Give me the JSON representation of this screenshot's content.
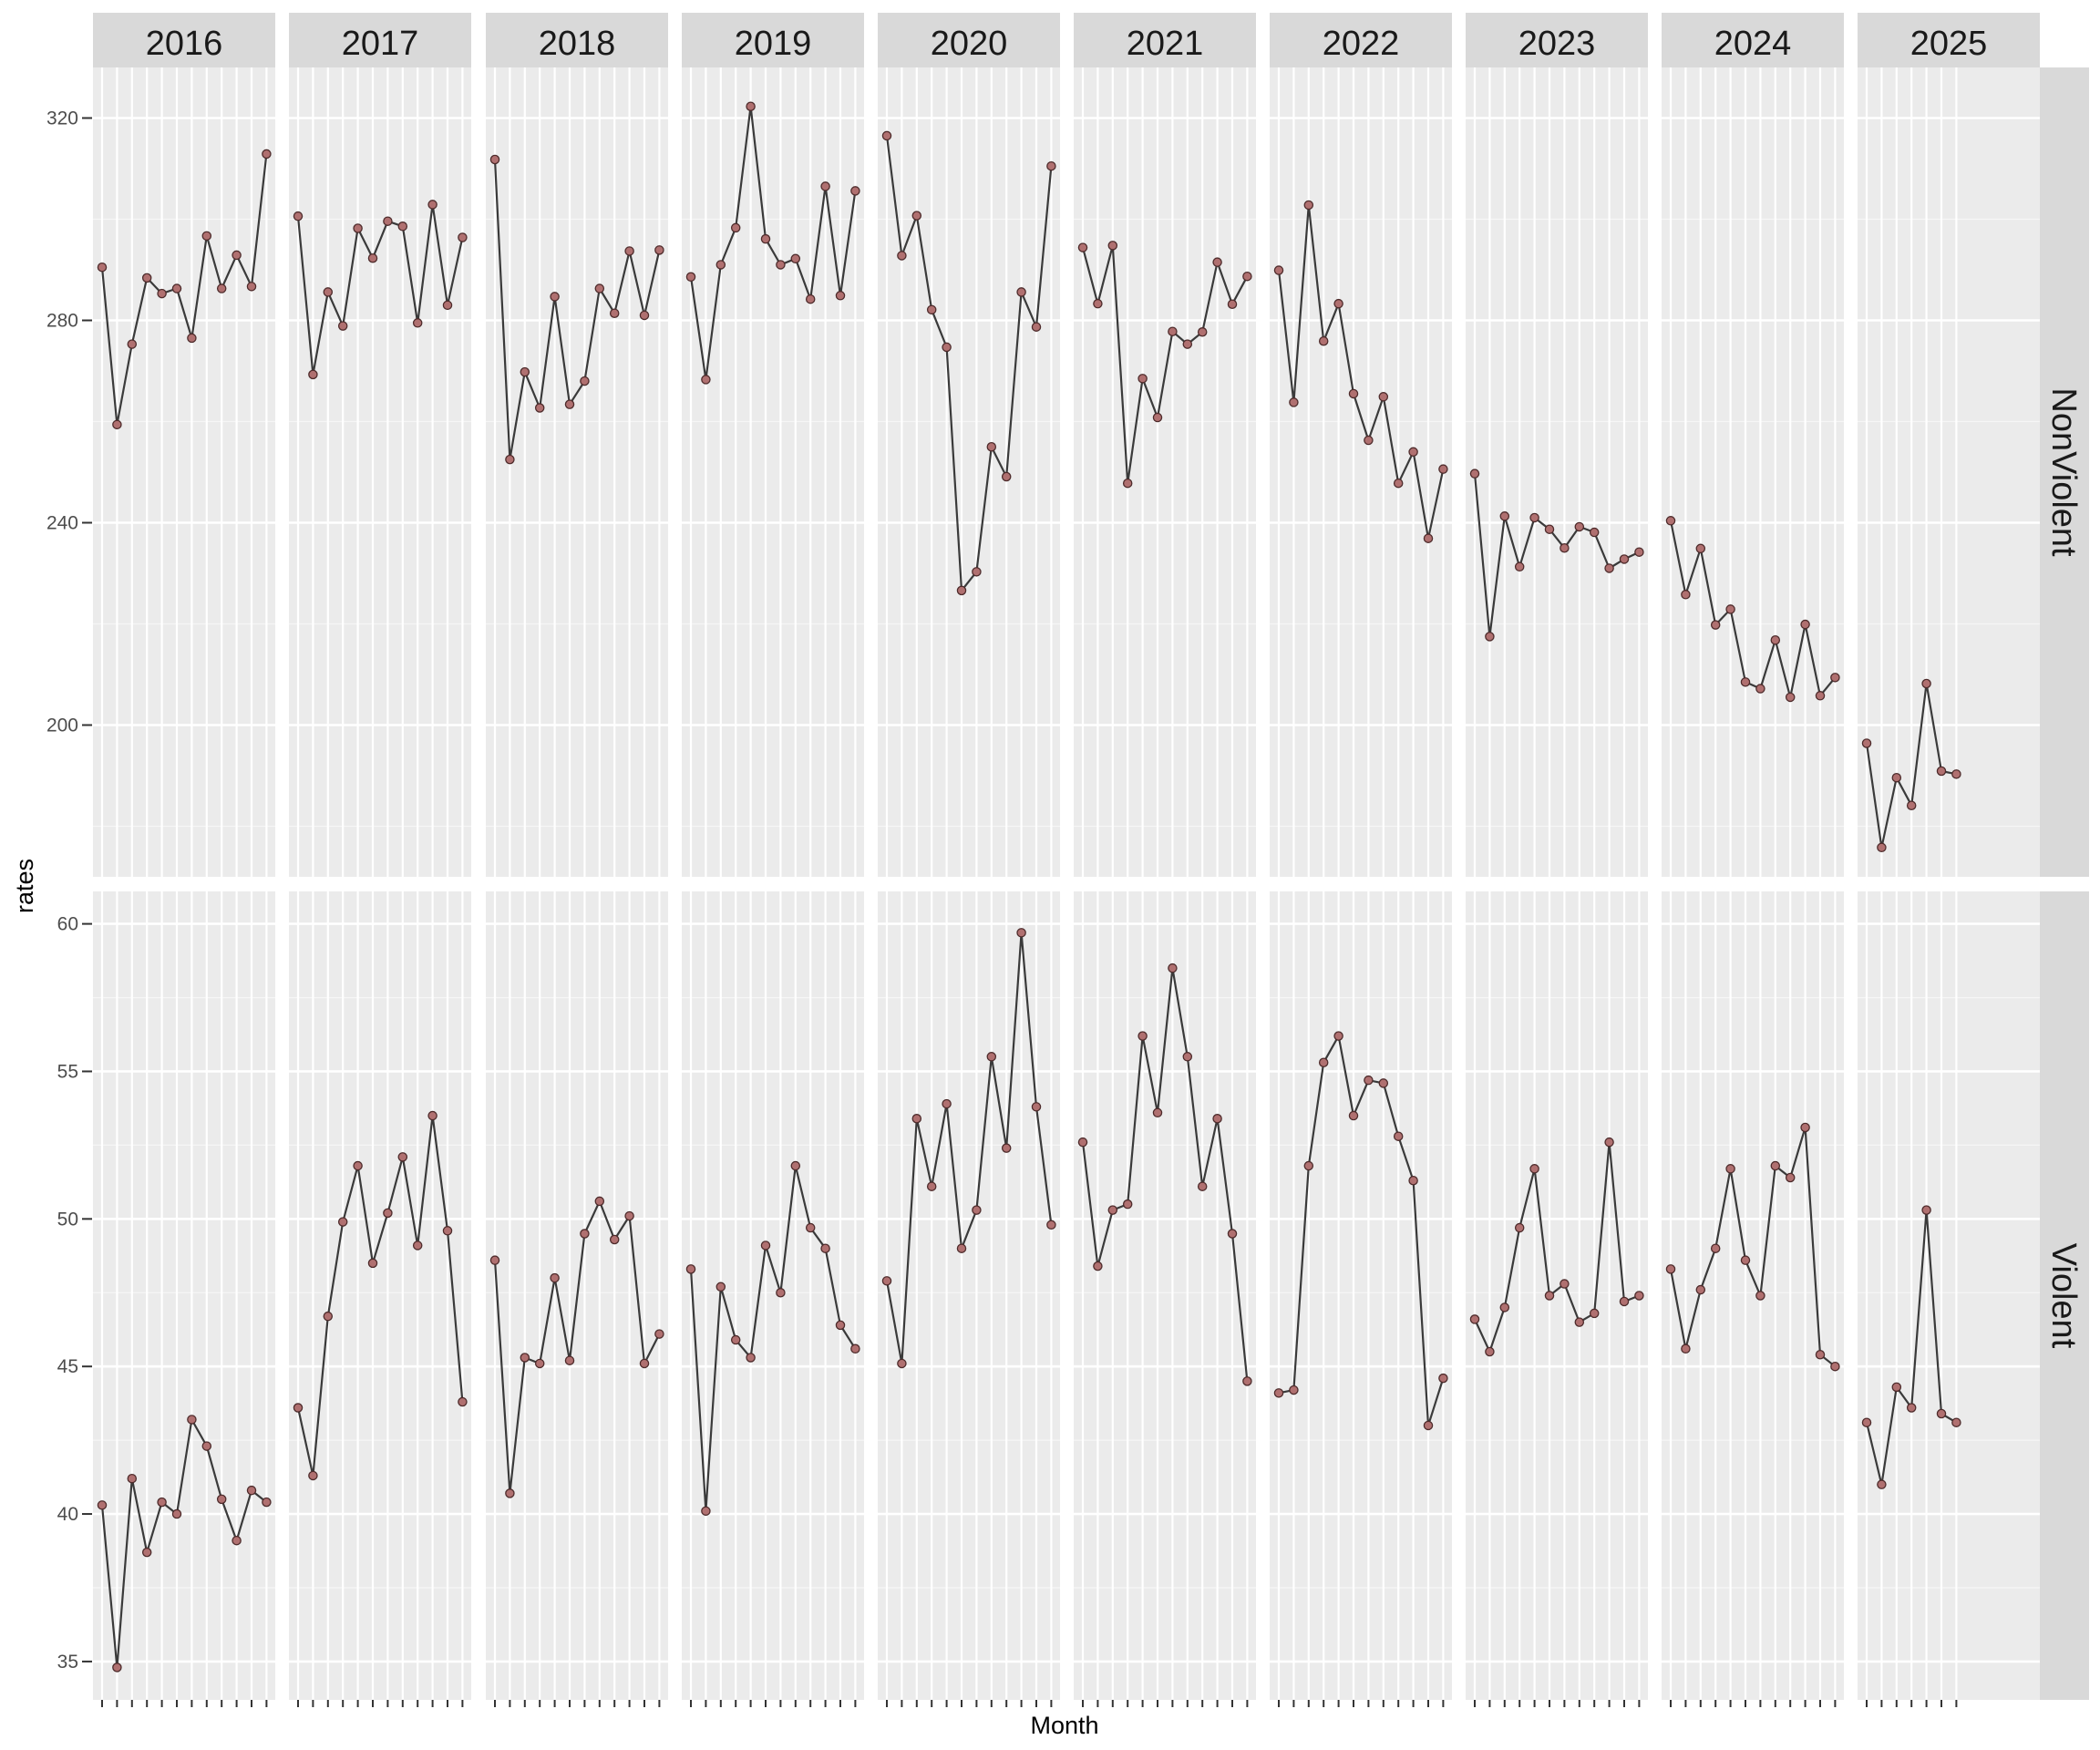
{
  "chart_data": {
    "type": "line",
    "xlabel": "Month",
    "ylabel": "rates",
    "columns": [
      "2016",
      "2017",
      "2018",
      "2019",
      "2020",
      "2021",
      "2022",
      "2023",
      "2024",
      "2025"
    ],
    "rows": [
      "NonViolent",
      "Violent"
    ],
    "grid": true,
    "panels": {
      "NonViolent": {
        "ylim": [
          170,
          330
        ],
        "yticks": [
          200,
          240,
          280,
          320
        ],
        "series": {
          "2016": [
            290.5,
            259.4,
            275.3,
            288.4,
            285.3,
            286.3,
            276.5,
            296.7,
            286.3,
            292.9,
            286.7,
            312.9
          ],
          "2017": [
            300.6,
            269.3,
            285.6,
            278.9,
            298.2,
            292.3,
            299.6,
            298.6,
            279.5,
            302.9,
            283.0,
            296.4
          ],
          "2018": [
            311.8,
            252.5,
            269.8,
            262.7,
            284.7,
            263.4,
            268.0,
            286.3,
            281.4,
            293.7,
            281.0,
            293.9
          ],
          "2019": [
            288.6,
            268.3,
            291.0,
            298.3,
            322.3,
            296.1,
            291.0,
            292.2,
            284.2,
            306.5,
            284.9,
            305.6
          ],
          "2020": [
            316.5,
            292.8,
            300.7,
            282.1,
            274.7,
            226.6,
            230.3,
            255.0,
            249.1,
            285.6,
            278.7,
            310.5
          ],
          "2021": [
            294.4,
            283.3,
            294.8,
            247.8,
            268.5,
            260.8,
            277.8,
            275.3,
            277.7,
            291.5,
            283.2,
            288.7
          ],
          "2022": [
            289.9,
            263.8,
            302.8,
            275.9,
            283.3,
            265.5,
            256.3,
            264.9,
            247.8,
            254.0,
            236.9,
            250.6
          ],
          "2023": [
            249.7,
            217.5,
            241.3,
            231.3,
            241.0,
            238.7,
            235.0,
            239.2,
            238.1,
            231.0,
            232.8,
            234.2
          ],
          "2024": [
            240.4,
            225.8,
            234.9,
            219.8,
            222.9,
            208.5,
            207.2,
            216.8,
            205.5,
            219.9,
            205.8,
            209.4
          ],
          "2025": [
            196.4,
            175.8,
            189.6,
            184.1,
            208.2,
            190.9,
            190.3
          ]
        }
      },
      "Violent": {
        "ylim": [
          33.7,
          61.1
        ],
        "yticks": [
          35,
          40,
          45,
          50,
          55,
          60
        ],
        "series": {
          "2016": [
            40.3,
            34.8,
            41.2,
            38.7,
            40.4,
            40.0,
            43.2,
            42.3,
            40.5,
            39.1,
            40.8,
            40.4
          ],
          "2017": [
            43.6,
            41.3,
            46.7,
            49.9,
            51.8,
            48.5,
            50.2,
            52.1,
            49.1,
            53.5,
            49.6,
            43.8
          ],
          "2018": [
            48.6,
            40.7,
            45.3,
            45.1,
            48.0,
            45.2,
            49.5,
            50.6,
            49.3,
            50.1,
            45.1,
            46.1
          ],
          "2019": [
            48.3,
            40.1,
            47.7,
            45.9,
            45.3,
            49.1,
            47.5,
            51.8,
            49.7,
            49.0,
            46.4,
            45.6
          ],
          "2020": [
            47.9,
            45.1,
            53.4,
            51.1,
            53.9,
            49.0,
            50.3,
            55.5,
            52.4,
            59.7,
            53.8,
            49.8
          ],
          "2021": [
            52.6,
            48.4,
            50.3,
            50.5,
            56.2,
            53.6,
            58.5,
            55.5,
            51.1,
            53.4,
            49.5,
            44.5
          ],
          "2022": [
            44.1,
            44.2,
            51.8,
            55.3,
            56.2,
            53.5,
            54.7,
            54.6,
            52.8,
            51.3,
            43.0,
            44.6
          ],
          "2023": [
            46.6,
            45.5,
            47.0,
            49.7,
            51.7,
            47.4,
            47.8,
            46.5,
            46.8,
            52.6,
            47.2,
            47.4
          ],
          "2024": [
            48.3,
            45.6,
            47.6,
            49.0,
            51.7,
            48.6,
            47.4,
            51.8,
            51.4,
            53.1,
            45.4,
            45.0
          ],
          "2025": [
            43.1,
            41.0,
            44.3,
            43.6,
            50.3,
            43.4,
            43.1
          ]
        }
      }
    },
    "colors": {
      "panel_background": "#ebebeb",
      "strip_background": "#d9d9d9",
      "grid_major": "#ffffff",
      "grid_minor": "#f6f6f6",
      "line": "#3a3a3a",
      "point_fill": "#b07070",
      "point_stroke": "#4d2b2b"
    }
  }
}
